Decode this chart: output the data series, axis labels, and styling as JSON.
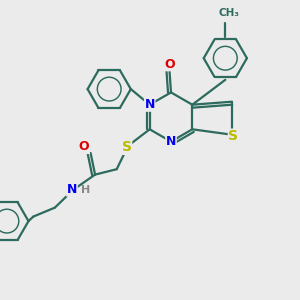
{
  "background_color": "#ebebeb",
  "bond_color": "#2d6b5e",
  "N_color": "#0000ee",
  "O_color": "#dd0000",
  "S_color": "#bbbb00",
  "H_color": "#888888",
  "figsize": [
    3.0,
    3.0
  ],
  "dpi": 100,
  "xlim": [
    0,
    10
  ],
  "ylim": [
    0,
    10
  ]
}
